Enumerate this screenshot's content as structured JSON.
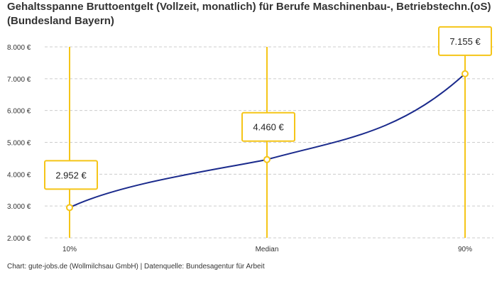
{
  "chart_data": {
    "type": "line",
    "title": "Gehaltsspanne Bruttoentgelt (Vollzeit, monatlich) für Berufe Maschinenbau-, Betriebstechn.(oS) (Bundesland Bayern)",
    "categories": [
      "10%",
      "Median",
      "90%"
    ],
    "values": [
      2952,
      4460,
      7155
    ],
    "data_labels": [
      "2.952 €",
      "4.460 €",
      "7.155 €"
    ],
    "yticks": [
      "2.000 €",
      "3.000 €",
      "4.000 €",
      "5.000 €",
      "6.000 €",
      "7.000 €",
      "8.000 €"
    ],
    "ylim": [
      2000,
      8000
    ],
    "grid": true,
    "colors": {
      "line": "#1a2a8c",
      "accent": "#f5c518",
      "grid": "#cccccc"
    }
  },
  "credit": "Chart: gute-jobs.de (Wollmilchsau GmbH) | Datenquelle: Bundesagentur für Arbeit"
}
